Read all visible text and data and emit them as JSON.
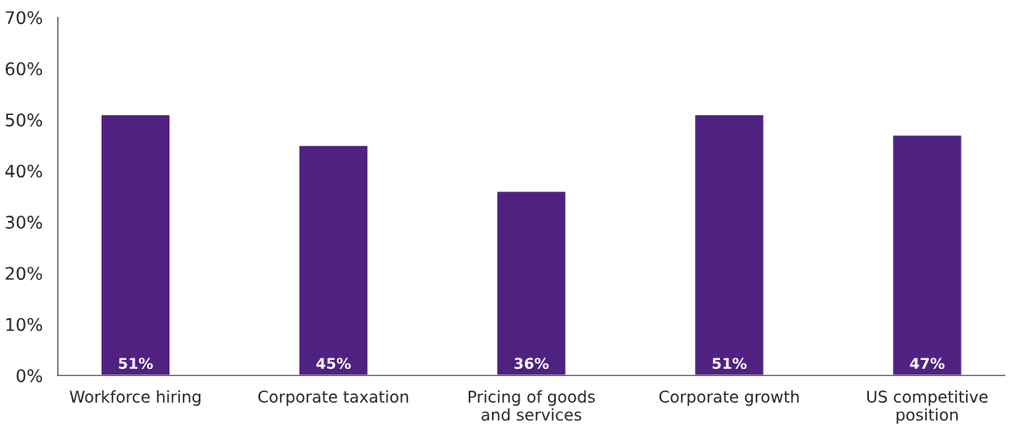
{
  "chart_data": {
    "type": "bar",
    "categories": [
      "Workforce hiring",
      "Corporate taxation",
      "Pricing of goods\nand services",
      "Corporate growth",
      "US competitive\nposition"
    ],
    "values": [
      51,
      45,
      36,
      51,
      47
    ],
    "value_labels": [
      "51%",
      "45%",
      "36%",
      "51%",
      "47%"
    ],
    "color": "#4f2282",
    "ylim": [
      0,
      70
    ],
    "yticks": [
      {
        "value": 0,
        "label": "0%"
      },
      {
        "value": 10,
        "label": "10%"
      },
      {
        "value": 20,
        "label": "20%"
      },
      {
        "value": 30,
        "label": "30%"
      },
      {
        "value": 40,
        "label": "40%"
      },
      {
        "value": 50,
        "label": "50%"
      },
      {
        "value": 60,
        "label": "60%"
      },
      {
        "value": 70,
        "label": "70%"
      }
    ],
    "grid": false,
    "legend": false
  }
}
